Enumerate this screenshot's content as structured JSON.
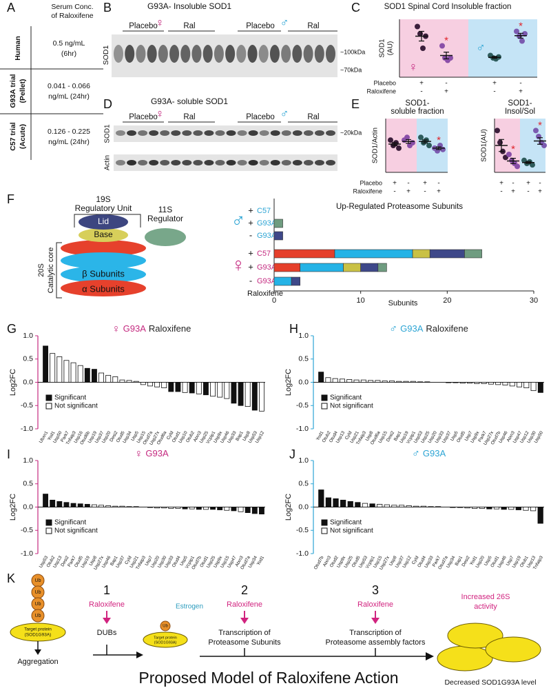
{
  "panel_letters": [
    "A",
    "B",
    "C",
    "D",
    "E",
    "F",
    "G",
    "H",
    "I",
    "J",
    "K"
  ],
  "panel_a": {
    "title": [
      "Serum Conc.",
      "of Raloxifene"
    ],
    "rows": [
      {
        "label": [
          "Human"
        ],
        "value": [
          "0.5 ng/mL",
          "(6hr)"
        ]
      },
      {
        "label": [
          "G93A trial",
          "(Pellet)"
        ],
        "value": [
          "0.041 - 0.066",
          "ng/mL (24hr)"
        ]
      },
      {
        "label": [
          "C57 trial",
          "(Acute)"
        ],
        "value": [
          "0.126 - 0.225",
          "ng/mL (24hr)"
        ]
      }
    ]
  },
  "panel_b": {
    "title": "G93A- Insoluble SOD1",
    "groups": [
      "Placebo",
      "Ral",
      "Placebo",
      "Ral"
    ],
    "sexes": [
      "♀",
      "♂"
    ],
    "ylabel": "SOD1",
    "markers": [
      "~100kDa",
      "~70kDa"
    ]
  },
  "panel_d": {
    "title": "G93A- soluble SOD1",
    "groups": [
      "Placebo",
      "Ral",
      "Placebo",
      "Ral"
    ],
    "sexes": [
      "♀",
      "♂"
    ],
    "rows": [
      "SOD1",
      "Actin"
    ],
    "markers": [
      "~20kDa"
    ]
  },
  "panel_f_diagram": {
    "regulatory": [
      "19S",
      "Regulatory Unit"
    ],
    "lid": "Lid",
    "base": "Base",
    "regulator": [
      "11S",
      "Regulator"
    ],
    "core": [
      "20S",
      "Catalytic core"
    ],
    "beta": "β Subunits",
    "alpha": "α Subunits"
  },
  "panel_k": {
    "ub": [
      "Ub",
      "Ub",
      "Ub",
      "Ub"
    ],
    "target": [
      "Target protein",
      "(SOD1G93A)"
    ],
    "aggregation": "Aggregation",
    "step1": {
      "number": "1",
      "drug": "Raloxifene",
      "text": [
        "DUBs"
      ]
    },
    "small_ub": "Ub",
    "small_target": [
      "Target protein",
      "(SOD1G93A)"
    ],
    "step2": {
      "number": "2",
      "drug": "Raloxifene",
      "text": [
        "Transcription of",
        "Proteasome Subunits"
      ]
    },
    "estrogen": "Estrogen",
    "step3": {
      "number": "3",
      "drug": "Raloxifene",
      "text": [
        "Transcription of",
        "Proteasome assembly factors"
      ]
    },
    "outcome": [
      "Increased 26S",
      "activity"
    ],
    "result": "Decreased SOD1G93A level",
    "title": "Proposed Model of Raloxifene Action"
  },
  "chart_data": [
    {
      "type": "dot",
      "title": [
        "SOD1 Spinal Cord Insoluble fraction"
      ],
      "ylabel": [
        "SOD1",
        "(AU)"
      ],
      "ylim": [
        0,
        12
      ],
      "backgrounds": [
        "#f7cfe1",
        "#c5e4f6"
      ],
      "sexes": [
        "♀",
        "♂"
      ],
      "sex_colors": [
        "#c4287f",
        "#2ba4d4"
      ],
      "groups": [
        {
          "color": "#3b1e3b",
          "points": [
            10.5,
            9,
            6,
            8.5
          ],
          "mean": 8.5,
          "sem": 1.0
        },
        {
          "color": "#8a4fa8",
          "points": [
            6.5,
            4,
            3.5,
            4
          ],
          "mean": 4.5,
          "sem": 0.7
        },
        {
          "color": "#2e5c5c",
          "points": [
            4.5,
            4,
            3.8,
            4.2
          ],
          "mean": 4.1,
          "sem": 0.2
        },
        {
          "color": "#7b5bb0",
          "points": [
            9.5,
            8.5,
            7.5,
            9
          ],
          "mean": 8.6,
          "sem": 0.5
        }
      ],
      "stars": [
        null,
        "*",
        null,
        "*"
      ],
      "star_color": "#e0242b",
      "rows": [
        {
          "label": "Placebo",
          "signs": [
            "+",
            "-",
            "+",
            "-"
          ]
        },
        {
          "label": "Raloxifene",
          "signs": [
            "-",
            "+",
            "-",
            "+"
          ]
        }
      ]
    },
    {
      "type": "dot",
      "title": [
        "SOD1-",
        "soluble fraction"
      ],
      "ylabel": [
        "SOD1/Actin"
      ],
      "ylim": [
        0,
        2
      ],
      "backgrounds": [
        "#f7cfe1",
        "#c5e4f6"
      ],
      "groups": [
        {
          "color": "#3b1e3b",
          "points": [
            1.2,
            1.0,
            1.1,
            0.9
          ],
          "mean": 1.05,
          "sem": 0.06
        },
        {
          "color": "#8a4fa8",
          "points": [
            1.2,
            1.3,
            1.0,
            1.1
          ],
          "mean": 1.15,
          "sem": 0.07
        },
        {
          "color": "#2e5c5c",
          "points": [
            1.3,
            1.1,
            1.2,
            1.0
          ],
          "mean": 1.15,
          "sem": 0.06
        },
        {
          "color": "#7b5bb0",
          "points": [
            0.9,
            0.8,
            1.0,
            0.85
          ],
          "mean": 0.9,
          "sem": 0.05
        }
      ],
      "stars": [
        null,
        null,
        null,
        "*"
      ],
      "star_color": "#e0242b",
      "rows": [
        {
          "label": "Placebo",
          "signs": [
            "+",
            "-",
            "+",
            "-"
          ]
        },
        {
          "label": "Raloxifene",
          "signs": [
            "-",
            "+",
            "-",
            "+"
          ]
        }
      ]
    },
    {
      "type": "dot",
      "title": [
        "SOD1-",
        "Insol/Sol"
      ],
      "ylabel": [
        "SOD1(AU)"
      ],
      "ylim": [
        0,
        18
      ],
      "backgrounds": [
        "#f7cfe1",
        "#c5e4f6"
      ],
      "groups": [
        {
          "color": "#3b1e3b",
          "points": [
            14,
            10,
            7,
            5
          ],
          "mean": 9,
          "sem": 2
        },
        {
          "color": "#8a4fa8",
          "points": [
            6,
            4,
            3,
            2
          ],
          "mean": 3.8,
          "sem": 0.9
        },
        {
          "color": "#2e5c5c",
          "points": [
            4,
            3,
            3.5,
            2.5
          ],
          "mean": 3.3,
          "sem": 0.3
        },
        {
          "color": "#7b5bb0",
          "points": [
            14,
            12,
            10,
            9
          ],
          "mean": 10.5,
          "sem": 1.1
        }
      ],
      "stars": [
        null,
        "*",
        null,
        "*"
      ],
      "star_color": "#e0242b",
      "rows": [
        {
          "signs": [
            "+",
            "-",
            "+",
            "-"
          ]
        },
        {
          "signs": [
            "-",
            "+",
            "-",
            "+"
          ]
        }
      ]
    },
    {
      "type": "stacked_hbar",
      "title": "Up-Regulated Proteasome Subunits",
      "xlabel": "Subunits",
      "xlim": [
        0,
        30
      ],
      "xticks": [
        0,
        10,
        20,
        30
      ],
      "categories": [
        "C57",
        "G93A",
        "G93A",
        "C57",
        "G93A",
        "G93A"
      ],
      "signs": [
        "+",
        "+",
        "-",
        "+",
        "+",
        "-"
      ],
      "category_colors": [
        "#2ba4d4",
        "#2ba4d4",
        "#2ba4d4",
        "#c4287f",
        "#c4287f",
        "#c4287f"
      ],
      "sexes": [
        "♂",
        "♀"
      ],
      "sex_colors": [
        "#2ba4d4",
        "#c4287f"
      ],
      "group_label": "Raloxifene",
      "series": [
        {
          "color": "#e53f2b",
          "values": [
            0,
            0,
            0,
            7,
            3,
            0
          ]
        },
        {
          "color": "#25b3e6",
          "values": [
            0,
            0,
            0,
            9,
            5,
            2
          ]
        },
        {
          "color": "#c9c145",
          "values": [
            0,
            0,
            0,
            2,
            2,
            0
          ]
        },
        {
          "color": "#3e4889",
          "values": [
            0,
            0,
            1,
            4,
            2,
            1
          ]
        },
        {
          "color": "#6f9c80",
          "values": [
            0,
            1,
            0,
            2,
            1,
            0
          ]
        }
      ]
    },
    {
      "type": "bar",
      "title": [
        {
          "text": "♀",
          "color": "#c4287f"
        },
        {
          "text": "G93A",
          "color": "#c4287f"
        },
        {
          "text": "Raloxifene",
          "color": "#222222"
        }
      ],
      "ylabel": "Log2FC",
      "ylim": [
        -1,
        1
      ],
      "axis_color": "#c4287f",
      "yticks": [
        {
          "value": -1,
          "label": "-1.0"
        },
        -0.5,
        {
          "value": 0,
          "label": "0.0"
        },
        0.5,
        {
          "value": 1,
          "label": "1.0"
        }
      ],
      "legend": [
        "Significant",
        "Not significant"
      ],
      "categories": [
        "Ubxn1",
        "Yod1",
        "Usp50",
        "Park7",
        "Tnfaip3",
        "Usp16",
        "Otud6b",
        "Usp19",
        "Usp37",
        "Usp20",
        "Desi2",
        "Otud5",
        "Usp34",
        "Usp5",
        "Usp15",
        "Otud7a",
        "Usp27x",
        "Otud6a",
        "Cyld",
        "Otud1",
        "Usp10",
        "Otub2",
        "Atxn3",
        "Usp25",
        "Vcpip1",
        "Usp9x",
        "Usp46",
        "Usp33",
        "Bap1",
        "Usp8",
        "Usp53",
        "Usp12"
      ],
      "values": [
        0.78,
        0.62,
        0.55,
        0.47,
        0.42,
        0.36,
        0.3,
        0.28,
        0.2,
        0.15,
        0.12,
        0.05,
        0.04,
        0.02,
        -0.05,
        -0.08,
        -0.1,
        -0.12,
        -0.2,
        -0.2,
        -0.22,
        -0.23,
        -0.25,
        -0.27,
        -0.3,
        -0.32,
        -0.35,
        -0.45,
        -0.5,
        -0.52,
        -0.6,
        -0.62
      ],
      "significant": [
        true,
        false,
        false,
        false,
        false,
        false,
        true,
        true,
        false,
        false,
        false,
        false,
        false,
        false,
        false,
        false,
        false,
        false,
        true,
        true,
        false,
        true,
        false,
        true,
        false,
        false,
        false,
        true,
        true,
        false,
        true,
        false
      ]
    },
    {
      "type": "bar",
      "title": [
        {
          "text": "♂",
          "color": "#2ba4d4"
        },
        {
          "text": "G93A",
          "color": "#2ba4d4"
        },
        {
          "text": "Raloxifene",
          "color": "#222222"
        }
      ],
      "ylabel": "Log2FC",
      "ylim": [
        -1,
        1
      ],
      "axis_color": "#2ba4d4",
      "yticks": [
        {
          "value": -1,
          "label": "-1.0"
        },
        -0.5,
        {
          "value": 0,
          "label": "0.0"
        },
        0.5,
        {
          "value": 1,
          "label": "1.0"
        }
      ],
      "legend": [
        "Significant",
        "Not significant"
      ],
      "categories": [
        "Yod1",
        "Otub2",
        "Otud4",
        "Usp13",
        "Cyld",
        "Usp21",
        "Tnfaip3",
        "Usp8",
        "Otud6a",
        "Usp15",
        "Desi2",
        "Bap1",
        "Usp19",
        "Vcpip1",
        "Usp53",
        "Usp25",
        "Usp20",
        "Usp33",
        "Usp37",
        "Usp5",
        "Otud5",
        "Usp7",
        "Usp9x",
        "Park7",
        "Usp27x",
        "Otud7b",
        "Usp46",
        "Atxn3",
        "Usp47",
        "Usp12",
        "Usp30",
        "Usp50"
      ],
      "values": [
        0.22,
        0.1,
        0.08,
        0.07,
        0.06,
        0.05,
        0.05,
        0.04,
        0.04,
        0.03,
        0.03,
        0.02,
        0.02,
        0.02,
        0.01,
        0.01,
        0.0,
        0.0,
        -0.01,
        -0.01,
        -0.02,
        -0.02,
        -0.03,
        -0.03,
        -0.04,
        -0.05,
        -0.06,
        -0.08,
        -0.1,
        -0.12,
        -0.18,
        -0.22
      ],
      "significant": [
        true,
        false,
        false,
        false,
        false,
        false,
        false,
        false,
        false,
        false,
        false,
        false,
        false,
        false,
        false,
        false,
        false,
        false,
        false,
        false,
        false,
        false,
        false,
        false,
        false,
        false,
        false,
        false,
        false,
        false,
        false,
        true
      ]
    },
    {
      "type": "bar",
      "title": [
        {
          "text": "♀",
          "color": "#c4287f"
        },
        {
          "text": "G93A",
          "color": "#c4287f"
        }
      ],
      "ylabel": "Log2FC",
      "ylim": [
        -1,
        1
      ],
      "axis_color": "#c4287f",
      "yticks": [
        {
          "value": -1,
          "label": "-1.0"
        },
        -0.5,
        {
          "value": 0,
          "label": "0.0"
        },
        0.5,
        {
          "value": 1,
          "label": "1.0"
        }
      ],
      "legend": [
        "Significant",
        "Not significant"
      ],
      "categories": [
        "Usp53",
        "Otub2",
        "Usp13",
        "Desi2",
        "Park7",
        "Otud5",
        "Usp19",
        "Usp8",
        "Usp27x",
        "Usp46",
        "Bap1",
        "Usp37",
        "Cyld",
        "Usp21",
        "Tnfaip3",
        "Usp7",
        "Usp20",
        "Usp30",
        "Usp33",
        "Otud4",
        "Usp5",
        "Vcpip1",
        "Otud7b",
        "Otud1",
        "Usp25",
        "Usp9x",
        "Usp15",
        "Usp47",
        "Atxn3",
        "Otud7a",
        "Usp34",
        "Yod1"
      ],
      "values": [
        0.28,
        0.15,
        0.12,
        0.1,
        0.08,
        0.07,
        0.06,
        0.05,
        0.04,
        0.03,
        0.02,
        0.02,
        0.01,
        0.01,
        0.0,
        -0.01,
        -0.02,
        -0.02,
        -0.03,
        -0.03,
        -0.04,
        -0.04,
        -0.05,
        -0.05,
        -0.05,
        -0.06,
        -0.07,
        -0.08,
        -0.1,
        -0.12,
        -0.14,
        -0.15
      ],
      "significant": [
        true,
        true,
        true,
        true,
        true,
        true,
        true,
        false,
        false,
        false,
        false,
        false,
        false,
        false,
        false,
        false,
        false,
        false,
        false,
        false,
        true,
        false,
        true,
        false,
        true,
        true,
        false,
        true,
        false,
        true,
        true,
        true
      ]
    },
    {
      "type": "bar",
      "title": [
        {
          "text": "♂",
          "color": "#2ba4d4"
        },
        {
          "text": "G93A",
          "color": "#2ba4d4"
        }
      ],
      "ylabel": "Log2FC",
      "ylim": [
        -1,
        1
      ],
      "axis_color": "#2ba4d4",
      "yticks": [
        {
          "value": -1,
          "label": "-1.0"
        },
        -0.5,
        {
          "value": 0,
          "label": "0.0"
        },
        0.5,
        {
          "value": 1,
          "label": "1.0"
        }
      ],
      "legend": [
        "Significant",
        "Not significant"
      ],
      "categories": [
        "Otud7b",
        "Atxn3",
        "Otud2",
        "Usp9x",
        "Usp25",
        "Otud5",
        "Usp53",
        "Vcpip1",
        "Usp15",
        "Usp27x",
        "Usp8",
        "Usp37",
        "Usp12",
        "Cyld",
        "Otud4",
        "Usp33",
        "Park7",
        "Otud7a",
        "Usp34",
        "Bap1",
        "Desi2",
        "Yod1",
        "Usp20",
        "Usp5",
        "Otud1",
        "Usp46",
        "Usp7",
        "Usp19",
        "Otub1",
        "Usp13",
        "Tnfaip3"
      ],
      "values": [
        0.37,
        0.2,
        0.18,
        0.15,
        0.12,
        0.1,
        0.08,
        0.07,
        0.06,
        0.05,
        0.04,
        0.04,
        0.03,
        0.02,
        0.02,
        0.01,
        0.01,
        0.0,
        -0.01,
        -0.01,
        -0.02,
        -0.03,
        -0.03,
        -0.04,
        -0.04,
        -0.05,
        -0.05,
        -0.06,
        -0.07,
        -0.08,
        -0.35
      ],
      "significant": [
        true,
        true,
        true,
        true,
        true,
        true,
        false,
        true,
        false,
        false,
        false,
        false,
        false,
        false,
        false,
        false,
        false,
        false,
        false,
        false,
        false,
        false,
        false,
        true,
        false,
        true,
        false,
        true,
        false,
        false,
        true
      ]
    }
  ]
}
